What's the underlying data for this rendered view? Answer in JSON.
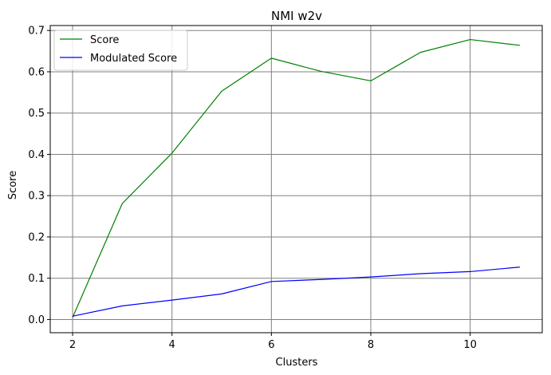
{
  "chart_data": {
    "type": "line",
    "title": "NMI w2v",
    "xlabel": "Clusters",
    "ylabel": "Score",
    "x": [
      2,
      3,
      4,
      5,
      6,
      7,
      8,
      9,
      10,
      11
    ],
    "xlim": [
      1.55,
      11.45
    ],
    "ylim": [
      -0.032,
      0.712
    ],
    "xticks": [
      "2",
      "4",
      "6",
      "8",
      "10"
    ],
    "yticks": [
      "0.0",
      "0.1",
      "0.2",
      "0.3",
      "0.4",
      "0.5",
      "0.6",
      "0.7"
    ],
    "grid": true,
    "legend_position": "top-left",
    "series": [
      {
        "name": "Score",
        "color": "#008000",
        "values": [
          0.005,
          0.281,
          0.403,
          0.553,
          0.633,
          0.601,
          0.578,
          0.647,
          0.678,
          0.664
        ]
      },
      {
        "name": "Modulated Score",
        "color": "#0000ff",
        "values": [
          0.008,
          0.033,
          0.047,
          0.062,
          0.092,
          0.097,
          0.103,
          0.111,
          0.116,
          0.127
        ]
      }
    ]
  }
}
